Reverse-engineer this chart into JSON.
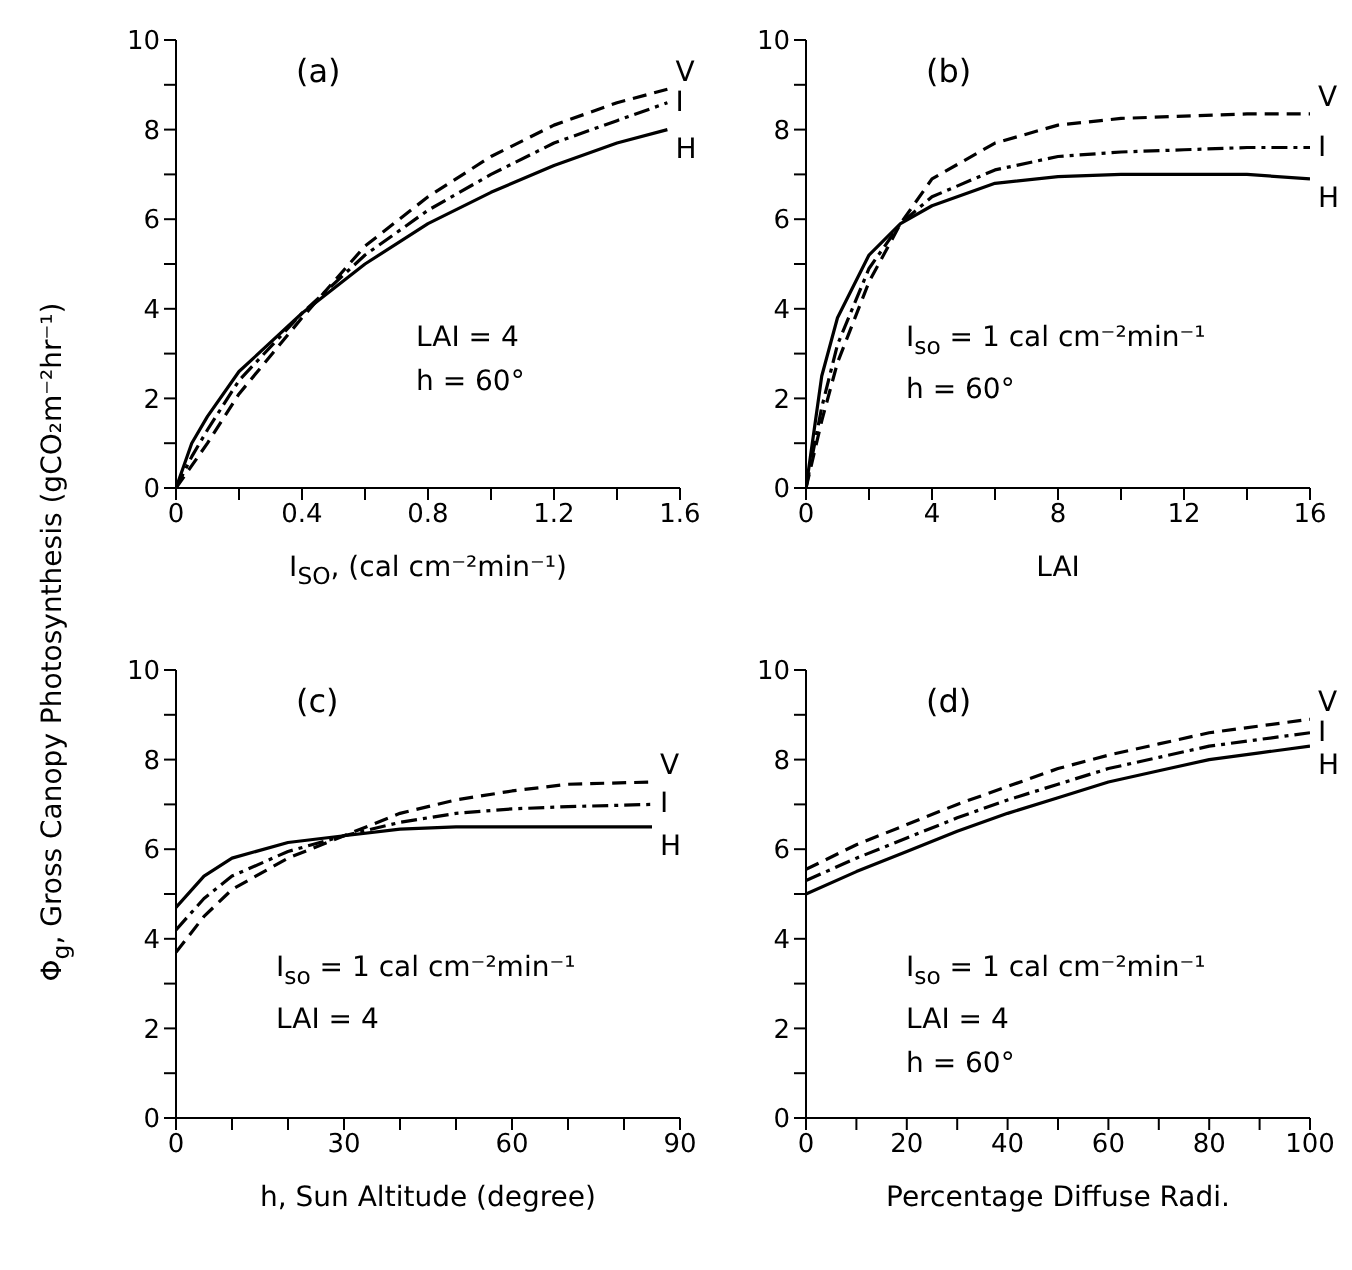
{
  "chart_data": [
    {
      "type": "line",
      "title": "(a)",
      "xlabel": "I$_{SO}$, (cal cm⁻²min⁻¹)",
      "ylabel": "Φ$_{g}$,  Gross Canopy Photosynthesis (gCO₂m⁻²hr⁻¹)",
      "x": [
        0,
        0.05,
        0.1,
        0.2,
        0.4,
        0.6,
        0.8,
        1.0,
        1.2,
        1.4,
        1.56
      ],
      "series": [
        {
          "name": "V",
          "color": "#000000",
          "line_style": "dashed",
          "values": [
            0,
            0.5,
            1.0,
            2.1,
            3.8,
            5.4,
            6.5,
            7.4,
            8.1,
            8.6,
            8.9
          ]
        },
        {
          "name": "I",
          "color": "#000000",
          "line_style": "dotted",
          "values": [
            0,
            0.7,
            1.3,
            2.4,
            3.9,
            5.2,
            6.2,
            7.0,
            7.7,
            8.2,
            8.6
          ]
        },
        {
          "name": "H",
          "color": "#000000",
          "line_style": "solid",
          "values": [
            0,
            1.0,
            1.6,
            2.6,
            3.9,
            5.0,
            5.9,
            6.6,
            7.2,
            7.7,
            8.0
          ]
        }
      ],
      "xlim": [
        0,
        1.6
      ],
      "xticks": [
        0,
        {
          "value": 0.2,
          "label": null
        },
        0.4,
        {
          "value": 0.6,
          "label": null
        },
        0.8,
        {
          "value": 1.0,
          "label": null
        },
        1.2,
        {
          "value": 1.4,
          "label": null
        },
        1.6
      ],
      "ylim": [
        0,
        10
      ],
      "yticks": [
        0,
        {
          "value": 1,
          "label": null
        },
        2,
        {
          "value": 3,
          "label": null
        },
        4,
        {
          "value": 5,
          "label": null
        },
        6,
        {
          "value": 7,
          "label": null
        },
        8,
        {
          "value": 9,
          "label": null
        },
        10
      ],
      "annotations": [
        "LAI = 4",
        "h = 60°"
      ]
    },
    {
      "type": "line",
      "title": "(b)",
      "xlabel": "LAI",
      "x": [
        0,
        0.5,
        1,
        2,
        3,
        4,
        6,
        8,
        10,
        12,
        14,
        16
      ],
      "series": [
        {
          "name": "V",
          "color": "#000000",
          "line_style": "dashed",
          "values": [
            0,
            1.5,
            2.8,
            4.6,
            5.9,
            6.9,
            7.7,
            8.1,
            8.25,
            8.3,
            8.35,
            8.35
          ]
        },
        {
          "name": "I",
          "color": "#000000",
          "line_style": "dotted",
          "values": [
            0,
            1.8,
            3.2,
            4.9,
            5.9,
            6.5,
            7.1,
            7.4,
            7.5,
            7.55,
            7.6,
            7.6
          ]
        },
        {
          "name": "H",
          "color": "#000000",
          "line_style": "solid",
          "values": [
            0,
            2.5,
            3.8,
            5.2,
            5.9,
            6.3,
            6.8,
            6.95,
            7.0,
            7.0,
            7.0,
            6.9
          ]
        }
      ],
      "xlim": [
        0,
        16
      ],
      "xticks": [
        0,
        {
          "value": 2,
          "label": null
        },
        4,
        {
          "value": 6,
          "label": null
        },
        8,
        {
          "value": 10,
          "label": null
        },
        12,
        {
          "value": 14,
          "label": null
        },
        16
      ],
      "ylim": [
        0,
        10
      ],
      "yticks": [
        0,
        {
          "value": 1,
          "label": null
        },
        2,
        {
          "value": 3,
          "label": null
        },
        4,
        {
          "value": 5,
          "label": null
        },
        6,
        {
          "value": 7,
          "label": null
        },
        8,
        {
          "value": 9,
          "label": null
        },
        10
      ],
      "annotations": [
        "I$_{so}$ = 1 cal cm⁻²min⁻¹",
        "h = 60°"
      ]
    },
    {
      "type": "line",
      "title": "(c)",
      "xlabel": "h, Sun Altitude (degree)",
      "x": [
        0,
        5,
        10,
        20,
        30,
        40,
        50,
        60,
        70,
        85
      ],
      "series": [
        {
          "name": "V",
          "color": "#000000",
          "line_style": "dashed",
          "values": [
            3.7,
            4.5,
            5.1,
            5.8,
            6.3,
            6.8,
            7.1,
            7.3,
            7.45,
            7.5
          ]
        },
        {
          "name": "I",
          "color": "#000000",
          "line_style": "dotted",
          "values": [
            4.2,
            4.9,
            5.4,
            5.95,
            6.3,
            6.6,
            6.8,
            6.9,
            6.95,
            7.0
          ]
        },
        {
          "name": "H",
          "color": "#000000",
          "line_style": "solid",
          "values": [
            4.7,
            5.4,
            5.8,
            6.15,
            6.3,
            6.45,
            6.5,
            6.5,
            6.5,
            6.5
          ]
        }
      ],
      "xlim": [
        0,
        90
      ],
      "xticks": [
        0,
        {
          "value": 10,
          "label": null
        },
        {
          "value": 20,
          "label": null
        },
        30,
        {
          "value": 40,
          "label": null
        },
        {
          "value": 50,
          "label": null
        },
        60,
        {
          "value": 70,
          "label": null
        },
        {
          "value": 80,
          "label": null
        },
        90
      ],
      "ylim": [
        0,
        10
      ],
      "yticks": [
        0,
        {
          "value": 1,
          "label": null
        },
        2,
        {
          "value": 3,
          "label": null
        },
        4,
        {
          "value": 5,
          "label": null
        },
        6,
        {
          "value": 7,
          "label": null
        },
        8,
        {
          "value": 9,
          "label": null
        },
        10
      ],
      "annotations": [
        "I$_{so}$ = 1 cal cm⁻²min⁻¹",
        "LAI = 4"
      ]
    },
    {
      "type": "line",
      "title": "(d)",
      "xlabel": "Percentage Diffuse Radi.",
      "x": [
        0,
        10,
        20,
        30,
        40,
        50,
        60,
        70,
        80,
        90,
        100
      ],
      "series": [
        {
          "name": "V",
          "color": "#000000",
          "line_style": "dashed",
          "values": [
            5.55,
            6.1,
            6.55,
            7.0,
            7.4,
            7.8,
            8.1,
            8.35,
            8.6,
            8.75,
            8.9
          ]
        },
        {
          "name": "I",
          "color": "#000000",
          "line_style": "dotted",
          "values": [
            5.3,
            5.8,
            6.25,
            6.7,
            7.1,
            7.45,
            7.8,
            8.05,
            8.3,
            8.45,
            8.6
          ]
        },
        {
          "name": "H",
          "color": "#000000",
          "line_style": "solid",
          "values": [
            5.0,
            5.5,
            5.95,
            6.4,
            6.8,
            7.15,
            7.5,
            7.75,
            8.0,
            8.15,
            8.3
          ]
        }
      ],
      "xlim": [
        0,
        100
      ],
      "xticks": [
        0,
        {
          "value": 10,
          "label": null
        },
        20,
        {
          "value": 30,
          "label": null
        },
        40,
        {
          "value": 50,
          "label": null
        },
        60,
        {
          "value": 70,
          "label": null
        },
        80,
        {
          "value": 90,
          "label": null
        },
        100
      ],
      "ylim": [
        0,
        10
      ],
      "yticks": [
        0,
        {
          "value": 1,
          "label": null
        },
        2,
        {
          "value": 3,
          "label": null
        },
        4,
        {
          "value": 5,
          "label": null
        },
        6,
        {
          "value": 7,
          "label": null
        },
        8,
        {
          "value": 9,
          "label": null
        },
        10
      ],
      "annotations": [
        "I$_{so}$ = 1 cal cm⁻²min⁻¹",
        "LAI = 4",
        "h = 60°"
      ]
    }
  ]
}
